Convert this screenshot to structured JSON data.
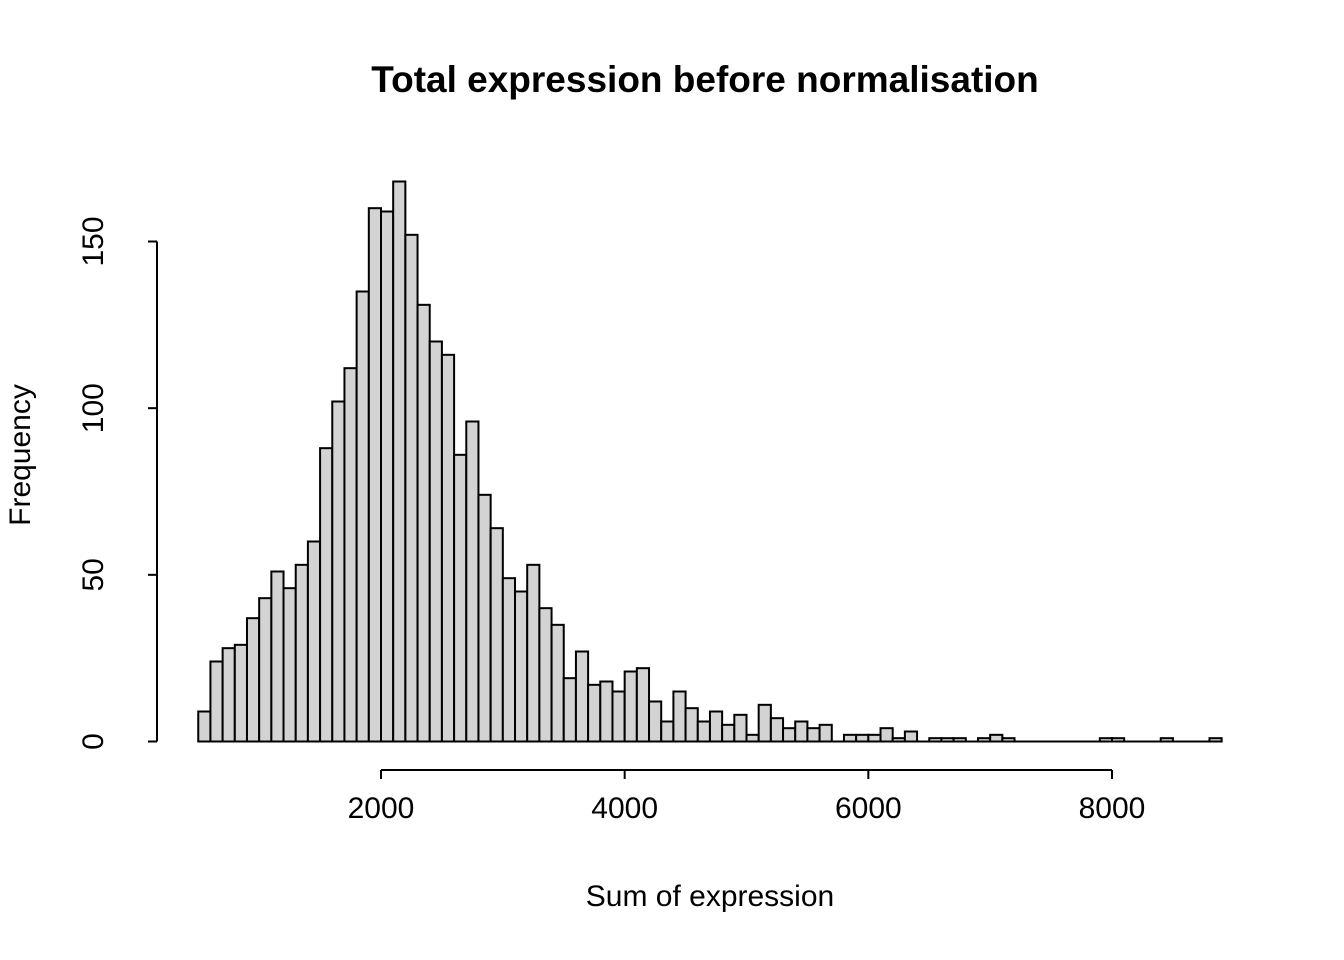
{
  "title": "Total expression before normalisation",
  "chart_data": {
    "type": "bar",
    "subtype": "histogram",
    "title": "Total expression before normalisation",
    "xlabel": "Sum of expression",
    "ylabel": "Frequency",
    "bin_start": 500,
    "bin_width": 100,
    "counts": [
      9,
      24,
      28,
      29,
      37,
      43,
      51,
      46,
      53,
      60,
      88,
      102,
      112,
      135,
      160,
      159,
      168,
      152,
      131,
      120,
      116,
      86,
      96,
      74,
      64,
      49,
      45,
      53,
      40,
      35,
      19,
      27,
      17,
      18,
      15,
      21,
      22,
      12,
      6,
      15,
      10,
      6,
      9,
      5,
      8,
      2,
      11,
      7,
      4,
      6,
      4,
      5,
      0,
      2,
      2,
      2,
      4,
      1,
      3,
      0,
      1,
      1,
      1,
      0,
      1,
      2,
      1,
      0,
      0,
      0,
      0,
      0,
      0,
      0,
      1,
      1,
      0,
      0,
      0,
      1,
      0,
      0,
      0,
      1
    ],
    "x_ticks": [
      2000,
      4000,
      6000,
      8000
    ],
    "y_ticks": [
      0,
      50,
      100,
      150
    ],
    "xlim": [
      500,
      8900
    ],
    "ylim": [
      0,
      168
    ],
    "grid": "off",
    "legend": "none",
    "bar_fill": "#d3d3d3",
    "bar_border": "#000000",
    "axis_color": "#000000",
    "background": "#ffffff"
  }
}
